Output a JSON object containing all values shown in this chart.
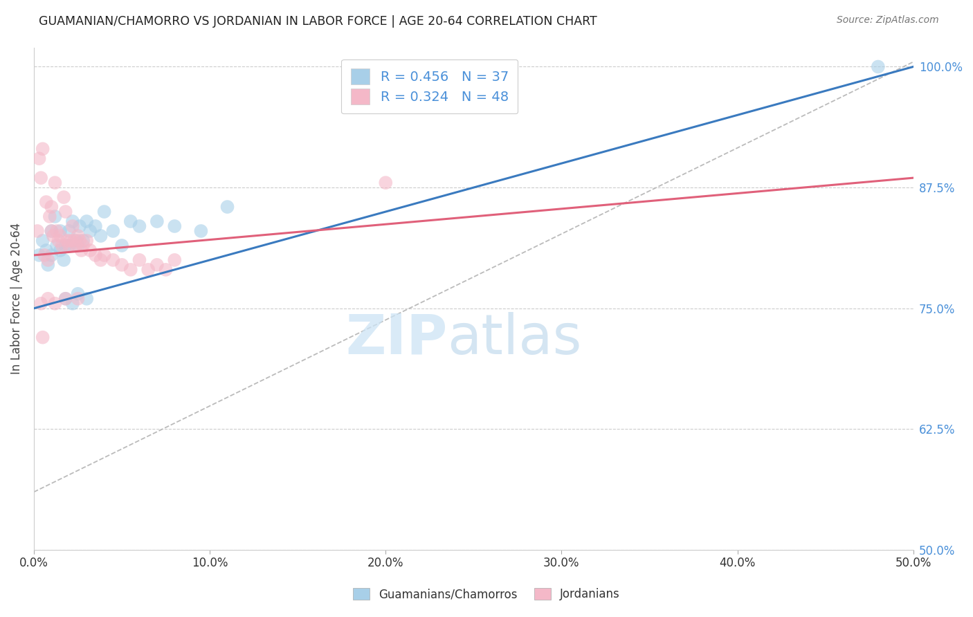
{
  "title": "GUAMANIAN/CHAMORRO VS JORDANIAN IN LABOR FORCE | AGE 20-64 CORRELATION CHART",
  "source": "Source: ZipAtlas.com",
  "ylabel_label": "In Labor Force | Age 20-64",
  "legend_label1": "Guamanians/Chamorros",
  "legend_label2": "Jordanians",
  "R1": 0.456,
  "N1": 37,
  "R2": 0.324,
  "N2": 48,
  "color_blue": "#a8cfe8",
  "color_pink": "#f4b8c8",
  "color_blue_line": "#3a7abf",
  "color_pink_line": "#e0607a",
  "blue_points_x": [
    0.3,
    0.5,
    0.7,
    0.8,
    1.0,
    1.0,
    1.2,
    1.3,
    1.5,
    1.5,
    1.7,
    1.8,
    2.0,
    2.0,
    2.2,
    2.4,
    2.5,
    2.6,
    2.8,
    3.0,
    3.2,
    3.5,
    3.8,
    4.0,
    4.5,
    5.0,
    5.5,
    6.0,
    7.0,
    8.0,
    9.5,
    11.0,
    1.8,
    2.2,
    2.5,
    3.0,
    48.0
  ],
  "blue_points_y": [
    80.5,
    82.0,
    81.0,
    79.5,
    83.0,
    80.5,
    84.5,
    81.5,
    83.0,
    81.0,
    80.0,
    81.5,
    83.0,
    81.5,
    84.0,
    82.0,
    81.5,
    83.5,
    82.0,
    84.0,
    83.0,
    83.5,
    82.5,
    85.0,
    83.0,
    81.5,
    84.0,
    83.5,
    84.0,
    83.5,
    83.0,
    85.5,
    76.0,
    75.5,
    76.5,
    76.0,
    100.0
  ],
  "pink_points_x": [
    0.2,
    0.3,
    0.4,
    0.5,
    0.6,
    0.7,
    0.8,
    0.9,
    1.0,
    1.0,
    1.1,
    1.2,
    1.3,
    1.4,
    1.5,
    1.6,
    1.7,
    1.8,
    1.9,
    2.0,
    2.1,
    2.2,
    2.3,
    2.4,
    2.5,
    2.6,
    2.7,
    2.8,
    3.0,
    3.2,
    3.5,
    3.8,
    4.0,
    4.5,
    5.0,
    5.5,
    6.0,
    6.5,
    7.0,
    7.5,
    8.0,
    0.4,
    0.8,
    1.2,
    1.8,
    2.5,
    0.5,
    20.0
  ],
  "pink_points_y": [
    83.0,
    90.5,
    88.5,
    91.5,
    80.5,
    86.0,
    80.0,
    84.5,
    83.0,
    85.5,
    82.5,
    88.0,
    83.0,
    82.0,
    82.5,
    81.5,
    86.5,
    85.0,
    82.0,
    81.5,
    82.0,
    83.5,
    82.0,
    81.5,
    82.5,
    82.0,
    81.0,
    81.5,
    82.0,
    81.0,
    80.5,
    80.0,
    80.5,
    80.0,
    79.5,
    79.0,
    80.0,
    79.0,
    79.5,
    79.0,
    80.0,
    75.5,
    76.0,
    75.5,
    76.0,
    76.0,
    72.0,
    88.0
  ],
  "blue_line_x0": 0.0,
  "blue_line_y0": 75.0,
  "blue_line_x1": 50.0,
  "blue_line_y1": 100.0,
  "pink_line_x0": 0.0,
  "pink_line_y0": 80.5,
  "pink_line_x1": 50.0,
  "pink_line_y1": 88.5,
  "dash_line_x0": 0.0,
  "dash_line_y0": 56.0,
  "dash_line_x1": 50.0,
  "dash_line_y1": 100.5,
  "watermark_zip": "ZIP",
  "watermark_atlas": "atlas",
  "background_color": "#ffffff",
  "xlim": [
    0,
    50
  ],
  "ylim": [
    50,
    102
  ],
  "yticks": [
    50.0,
    62.5,
    75.0,
    87.5,
    100.0
  ],
  "xticks": [
    0,
    10,
    20,
    30,
    40,
    50
  ]
}
